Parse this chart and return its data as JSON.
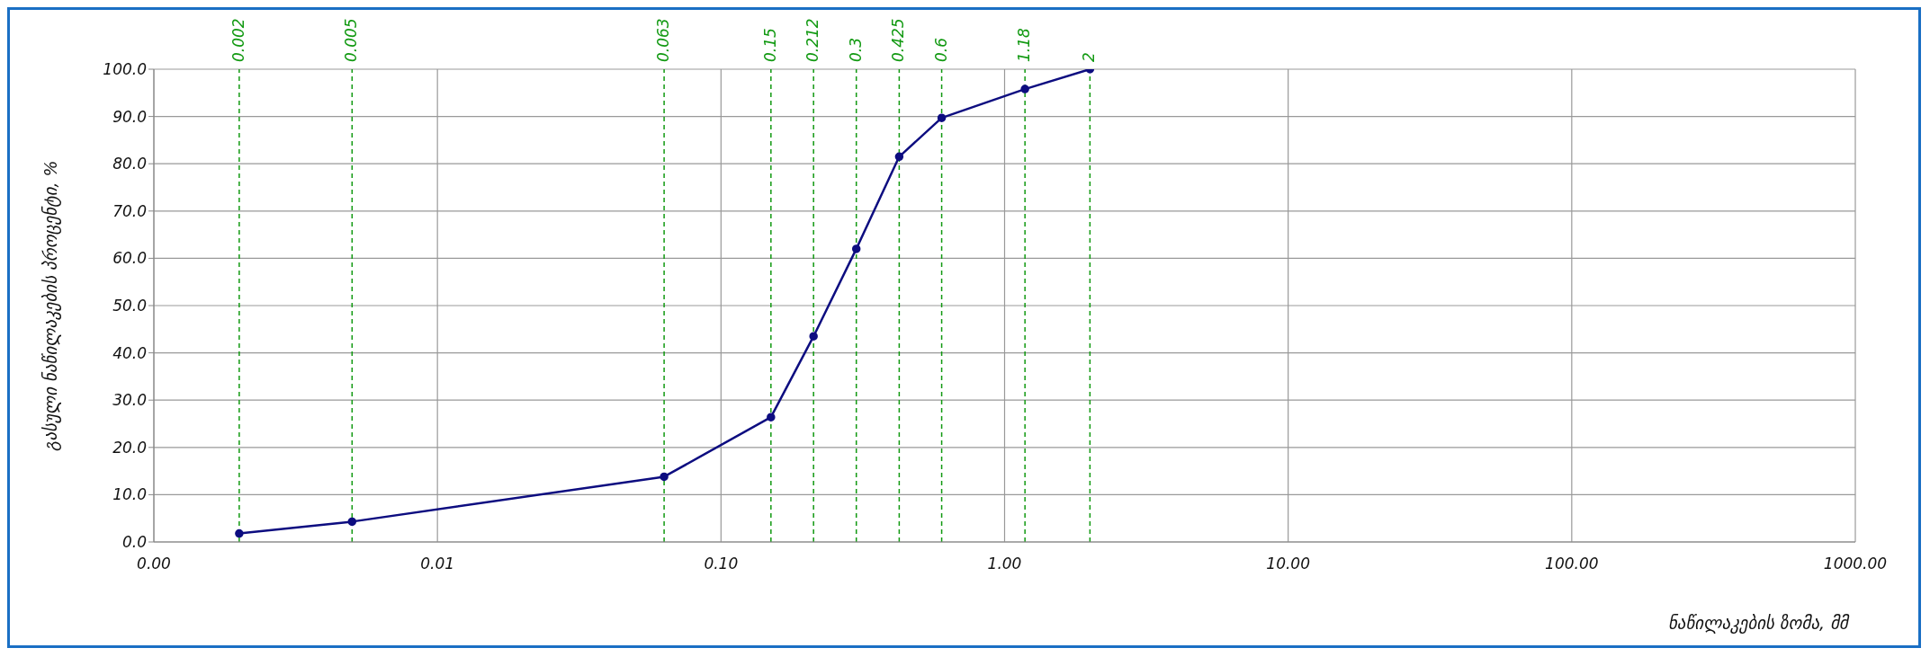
{
  "chart_data": {
    "type": "line",
    "xlabel": "ნაწილაკების ზომა, მმ",
    "ylabel": "გასული ნაწილაკების პროცენტი, %",
    "x": [
      0.002,
      0.005,
      0.063,
      0.15,
      0.212,
      0.3,
      0.425,
      0.6,
      1.18,
      2
    ],
    "values": [
      1.8,
      4.3,
      13.8,
      26.4,
      43.5,
      62.0,
      81.5,
      89.7,
      95.8,
      100.0
    ],
    "color": "#0d0d80",
    "marker": "circle",
    "line_style": "solid",
    "log": "x",
    "grid": true,
    "xlim": [
      0.001,
      1000
    ],
    "xticks": [
      {
        "value": 0.001,
        "label": "0.00"
      },
      {
        "value": 0.01,
        "label": "0.01"
      },
      {
        "value": 0.1,
        "label": "0.10"
      },
      {
        "value": 1,
        "label": "1.00"
      },
      {
        "value": 10,
        "label": "10.00"
      },
      {
        "value": 100,
        "label": "100.00"
      },
      {
        "value": 1000,
        "label": "1000.00"
      }
    ],
    "ylim": [
      0,
      100
    ],
    "yticks": [
      {
        "value": 0,
        "label": "0.0"
      },
      {
        "value": 10,
        "label": "10.0"
      },
      {
        "value": 20,
        "label": "20.0"
      },
      {
        "value": 30,
        "label": "30.0"
      },
      {
        "value": 40,
        "label": "40.0"
      },
      {
        "value": 50,
        "label": "50.0"
      },
      {
        "value": 60,
        "label": "60.0"
      },
      {
        "value": 70,
        "label": "70.0"
      },
      {
        "value": 80,
        "label": "80.0"
      },
      {
        "value": 90,
        "label": "90.0"
      },
      {
        "value": 100,
        "label": "100.0"
      }
    ],
    "ref_lines": [
      {
        "axis": "x",
        "value": 0.002,
        "label": "0.002",
        "color": "#119911",
        "line_style": "dashed"
      },
      {
        "axis": "x",
        "value": 0.005,
        "label": "0.005",
        "color": "#119911",
        "line_style": "dashed"
      },
      {
        "axis": "x",
        "value": 0.063,
        "label": "0.063",
        "color": "#119911",
        "line_style": "dashed"
      },
      {
        "axis": "x",
        "value": 0.15,
        "label": "0.15",
        "color": "#119911",
        "line_style": "dashed"
      },
      {
        "axis": "x",
        "value": 0.212,
        "label": "0.212",
        "color": "#119911",
        "line_style": "dashed"
      },
      {
        "axis": "x",
        "value": 0.3,
        "label": "0.3",
        "color": "#119911",
        "line_style": "dashed"
      },
      {
        "axis": "x",
        "value": 0.425,
        "label": "0.425",
        "color": "#119911",
        "line_style": "dashed"
      },
      {
        "axis": "x",
        "value": 0.6,
        "label": "0.6",
        "color": "#119911",
        "line_style": "dashed"
      },
      {
        "axis": "x",
        "value": 1.18,
        "label": "1.18",
        "color": "#119911",
        "line_style": "dashed"
      },
      {
        "axis": "x",
        "value": 2,
        "label": "2",
        "color": "#119911",
        "line_style": "dashed"
      }
    ]
  }
}
